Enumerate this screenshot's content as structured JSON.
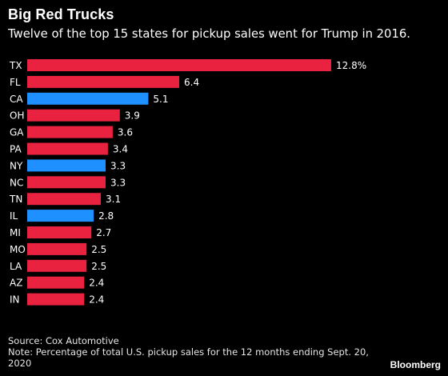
{
  "title": "Big Red Trucks",
  "subtitle": "Twelve of the top 15 states for pickup sales went for Trump in 2016.",
  "source": "Source: Cox Automotive",
  "note_line1": "Note: Percentage of total U.S. pickup sales for the 12 months ending Sept. 20,",
  "note_line2": "2020",
  "brand": "Bloomberg",
  "colors": {
    "red": "#e8223f",
    "blue": "#1e90ff",
    "text": "#ffffff",
    "background": "#000000"
  },
  "chart_data": {
    "type": "bar",
    "orientation": "horizontal",
    "categories": [
      "TX",
      "FL",
      "CA",
      "OH",
      "GA",
      "PA",
      "NY",
      "NC",
      "TN",
      "IL",
      "MI",
      "MO",
      "LA",
      "AZ",
      "IN"
    ],
    "values": [
      12.8,
      6.4,
      5.1,
      3.9,
      3.6,
      3.4,
      3.3,
      3.3,
      3.1,
      2.8,
      2.7,
      2.5,
      2.5,
      2.4,
      2.4
    ],
    "value_labels": [
      "12.8%",
      "6.4",
      "5.1",
      "3.9",
      "3.6",
      "3.4",
      "3.3",
      "3.3",
      "3.1",
      "2.8",
      "2.7",
      "2.5",
      "2.5",
      "2.4",
      "2.4"
    ],
    "party": [
      "red",
      "red",
      "blue",
      "red",
      "red",
      "red",
      "blue",
      "red",
      "red",
      "blue",
      "red",
      "red",
      "red",
      "red",
      "red"
    ],
    "grid": false,
    "legend": "none"
  }
}
